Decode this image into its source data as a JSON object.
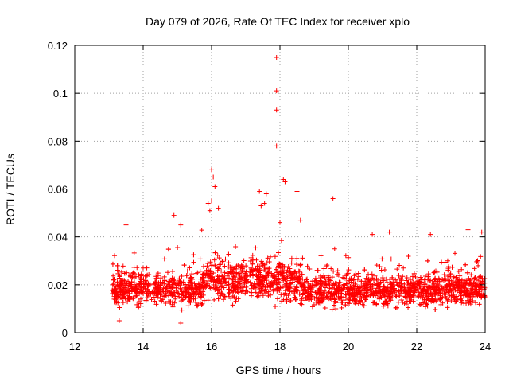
{
  "chart_data": {
    "type": "scatter",
    "title": "Day 079 of 2026, Rate Of TEC Index for receiver xplo",
    "xlabel": "GPS time / hours",
    "ylabel": "ROTI / TECUs",
    "xlim": [
      12,
      24
    ],
    "ylim": [
      0,
      0.12
    ],
    "xticks": [
      12,
      14,
      16,
      18,
      20,
      22,
      24
    ],
    "xtick_labels": [
      "12",
      "14",
      "16",
      "18",
      "20",
      "22",
      "24"
    ],
    "yticks": [
      0,
      0.02,
      0.04,
      0.06,
      0.08,
      0.1,
      0.12
    ],
    "ytick_labels": [
      "0",
      "0.02",
      "0.04",
      "0.06",
      "0.08",
      "0.1",
      "0.12"
    ],
    "grid": true,
    "marker": "+",
    "color": "#ff0000",
    "series": [
      {
        "name": "ROTI",
        "description": "dense band of points from ~13.1 h to 24 h",
        "x_range": [
          13.1,
          24.0
        ],
        "typical_range": [
          0.008,
          0.03
        ],
        "points": [
          {
            "x": 17.9,
            "y": 0.115
          },
          {
            "x": 17.9,
            "y": 0.101
          },
          {
            "x": 17.9,
            "y": 0.093
          },
          {
            "x": 17.9,
            "y": 0.078
          },
          {
            "x": 16.0,
            "y": 0.068
          },
          {
            "x": 16.05,
            "y": 0.065
          },
          {
            "x": 18.1,
            "y": 0.064
          },
          {
            "x": 18.15,
            "y": 0.063
          },
          {
            "x": 16.1,
            "y": 0.061
          },
          {
            "x": 17.4,
            "y": 0.059
          },
          {
            "x": 17.6,
            "y": 0.058
          },
          {
            "x": 18.5,
            "y": 0.059
          },
          {
            "x": 19.55,
            "y": 0.056
          },
          {
            "x": 16.0,
            "y": 0.055
          },
          {
            "x": 15.9,
            "y": 0.054
          },
          {
            "x": 17.55,
            "y": 0.054
          },
          {
            "x": 17.45,
            "y": 0.053
          },
          {
            "x": 16.2,
            "y": 0.052
          },
          {
            "x": 15.95,
            "y": 0.051
          },
          {
            "x": 14.9,
            "y": 0.049
          },
          {
            "x": 18.6,
            "y": 0.047
          },
          {
            "x": 13.5,
            "y": 0.045
          },
          {
            "x": 15.1,
            "y": 0.045
          },
          {
            "x": 18.0,
            "y": 0.046
          },
          {
            "x": 23.9,
            "y": 0.042
          },
          {
            "x": 21.2,
            "y": 0.042
          },
          {
            "x": 23.5,
            "y": 0.043
          },
          {
            "x": 22.4,
            "y": 0.041
          },
          {
            "x": 20.7,
            "y": 0.041
          },
          {
            "x": 19.6,
            "y": 0.035
          },
          {
            "x": 15.1,
            "y": 0.004
          },
          {
            "x": 13.3,
            "y": 0.005
          }
        ]
      }
    ]
  }
}
